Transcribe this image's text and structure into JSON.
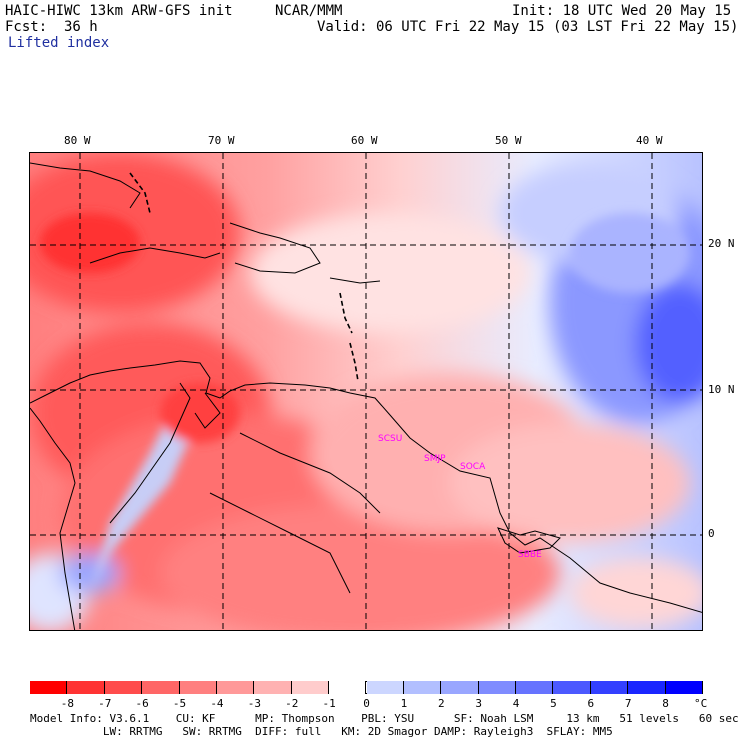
{
  "header": {
    "model_title": "HAIC-HIWC 13km ARW-GFS init",
    "org": "NCAR/MMM",
    "init": "Init: 18 UTC Wed 20 May 15",
    "fcst": "Fcst:  36 h",
    "valid": "Valid: 06 UTC Fri 22 May 15 (03 LST Fri 22 May 15)",
    "field": "Lifted index"
  },
  "map": {
    "lon_labels": [
      "80 W",
      "70 W",
      "60 W",
      "50 W",
      "40 W"
    ],
    "lat_labels": [
      "20 N",
      "10 N",
      "0"
    ],
    "stations": [
      "SCSU",
      "SMJP",
      "SOCA",
      "SBBE"
    ],
    "colors": {
      "negative": "#ff0000",
      "positive": "#0000ff",
      "land_line": "#000000",
      "station": "#ff00ff"
    }
  },
  "colorbar": {
    "ticks": [
      "-8",
      "-7",
      "-6",
      "-5",
      "-4",
      "-3",
      "-2",
      "-1",
      "0",
      "1",
      "2",
      "3",
      "4",
      "5",
      "6",
      "7",
      "8"
    ],
    "units": "°C",
    "colors": [
      "#ff0000",
      "#ff3333",
      "#ff4c4c",
      "#ff6666",
      "#ff7f7f",
      "#ff9999",
      "#ffb2b2",
      "#ffcccc",
      "#ffffff",
      "#ccd6ff",
      "#b2bfff",
      "#99a6ff",
      "#7f8cff",
      "#6673ff",
      "#4c59ff",
      "#3340ff",
      "#1a26ff",
      "#0000ff"
    ]
  },
  "footer": {
    "line1": "Model Info: V3.6.1    CU: KF      MP: Thompson    PBL: YSU      SF: Noah LSM     13 km   51 levels   60 sec",
    "line2": "           LW: RRTMG   SW: RRTMG  DIFF: full   KM: 2D Smagor DAMP: Rayleigh3  SFLAY: MM5"
  }
}
